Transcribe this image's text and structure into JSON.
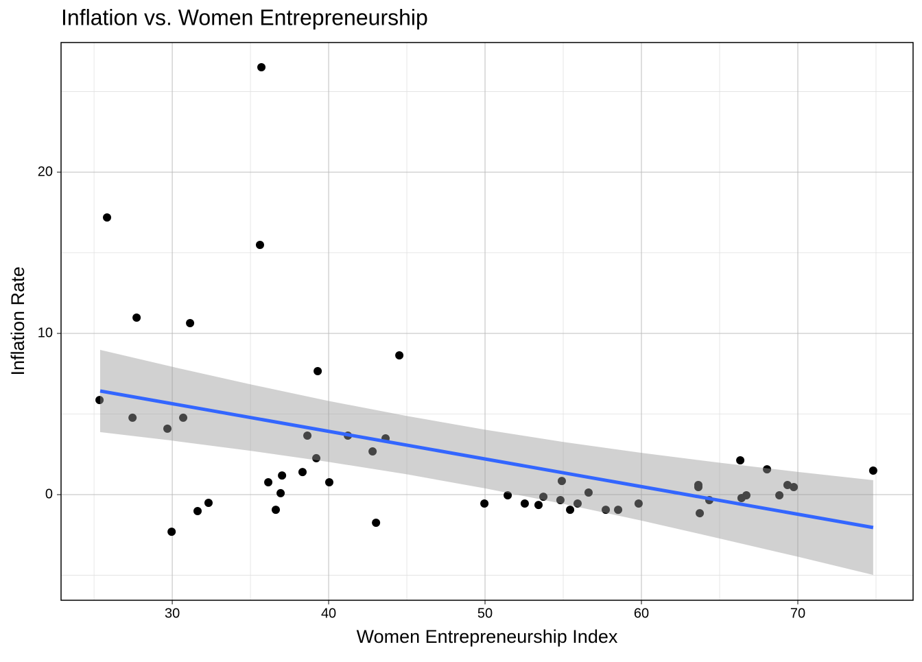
{
  "chart_data": {
    "type": "scatter",
    "title": "Inflation vs. Women Entrepreneurship",
    "x_label": "Women Entrepreneurship Index",
    "y_label": "Inflation Rate",
    "color": "#000000",
    "x": [
      25.35,
      25.83,
      27.72,
      27.46,
      29.69,
      29.96,
      30.7,
      31.14,
      31.62,
      32.32,
      35.7,
      35.61,
      36.14,
      36.62,
      36.93,
      37.02,
      38.33,
      38.64,
      39.21,
      39.3,
      40.04,
      41.23,
      42.81,
      43.03,
      43.64,
      44.52,
      49.96,
      51.45,
      52.54,
      53.42,
      53.73,
      54.82,
      54.91,
      55.44,
      55.92,
      56.62,
      57.72,
      58.51,
      59.82,
      63.64,
      63.64,
      63.73,
      64.34,
      66.32,
      66.4,
      66.71,
      68.03,
      68.82,
      69.34,
      69.74,
      74.82
    ],
    "values": [
      5.87,
      17.19,
      10.98,
      4.77,
      4.09,
      -2.3,
      4.77,
      10.64,
      -1.02,
      -0.51,
      26.51,
      15.49,
      0.77,
      -0.94,
      0.09,
      1.19,
      1.4,
      3.66,
      2.26,
      7.66,
      0.77,
      3.66,
      2.68,
      -1.74,
      3.49,
      8.64,
      -0.55,
      -0.04,
      -0.55,
      -0.64,
      -0.13,
      -0.34,
      0.85,
      -0.94,
      -0.55,
      0.13,
      -0.94,
      -0.94,
      -0.55,
      0.6,
      0.47,
      -1.15,
      -0.34,
      2.13,
      -0.21,
      -0.04,
      1.57,
      -0.04,
      0.6,
      0.47,
      1.49
    ],
    "fit": {
      "x": [
        25.39,
        74.82
      ],
      "values": [
        6.43,
        -2.04
      ],
      "color": "#3366ff"
    },
    "band": {
      "x": [
        25.39,
        30,
        35,
        40,
        45,
        50,
        55,
        60,
        65,
        70,
        74.82
      ],
      "upper": [
        8.98,
        7.93,
        6.84,
        5.81,
        4.88,
        4.03,
        3.27,
        2.59,
        1.98,
        1.41,
        0.9
      ],
      "lower": [
        3.88,
        3.35,
        2.72,
        2.03,
        1.26,
        0.39,
        -0.57,
        -1.61,
        -2.72,
        -3.85,
        -4.98
      ],
      "color": "#999999"
    },
    "xlim": [
      22.89,
      77.37
    ],
    "ylim": [
      -6.55,
      28.04
    ],
    "xticks": [
      30,
      40,
      50,
      60,
      70
    ],
    "yticks": [
      0,
      10,
      20
    ],
    "x_minor_grid": [
      25,
      35,
      45,
      55,
      65,
      75
    ],
    "y_minor_grid": [
      -5,
      5,
      15,
      25
    ],
    "grid": true
  }
}
